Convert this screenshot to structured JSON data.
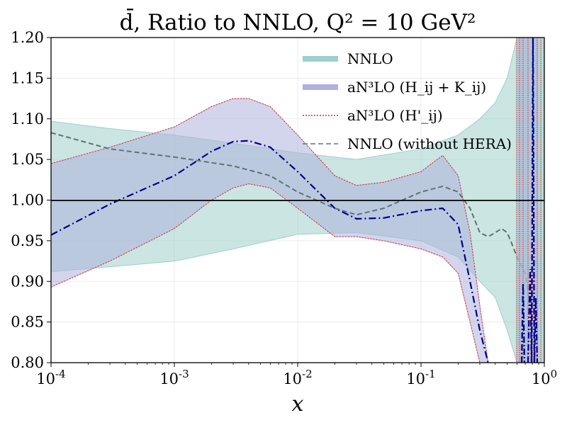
{
  "chart_data": {
    "type": "line",
    "title": "d̄, Ratio to NNLO, Q² = 10 GeV²",
    "xlabel": "x",
    "ylabel": "",
    "xscale": "log",
    "xlim": [
      0.0001,
      1
    ],
    "ylim": [
      0.8,
      1.2
    ],
    "grid": true,
    "legend_position": "top-right",
    "x_tick_labels": [
      "10^-4",
      "10^-3",
      "10^-2",
      "10^-1",
      "10^0"
    ],
    "y_tick_labels": [
      "0.80",
      "0.85",
      "0.90",
      "0.95",
      "1.00",
      "1.05",
      "1.10",
      "1.15",
      "1.20"
    ],
    "reference_line": 1.0,
    "legend": [
      {
        "label": "NNLO",
        "style": "band",
        "color": "#9ecfcb"
      },
      {
        "label": "aN³LO (H_ij + K_ij)",
        "style": "band",
        "color": "#aeb2dc"
      },
      {
        "label": "aN³LO (H'_ij)",
        "style": "dotted",
        "color": "#e8241b"
      },
      {
        "label": "NNLO (without HERA)",
        "style": "dashed",
        "color": "#5e7373"
      }
    ],
    "series": [
      {
        "name": "NNLO band",
        "kind": "band",
        "color": "#9ecfcb",
        "x": [
          0.0001,
          0.0003,
          0.001,
          0.003,
          0.01,
          0.03,
          0.1,
          0.2,
          0.3,
          0.4,
          0.5,
          0.6,
          0.7,
          0.8,
          0.9,
          1.0
        ],
        "upper": [
          1.097,
          1.088,
          1.08,
          1.07,
          1.058,
          1.05,
          1.063,
          1.08,
          1.1,
          1.12,
          1.15,
          1.2,
          1.2,
          1.2,
          1.2,
          1.2
        ],
        "lower": [
          0.912,
          0.918,
          0.925,
          0.94,
          0.958,
          0.96,
          0.95,
          0.93,
          0.9,
          0.88,
          0.84,
          0.8,
          0.8,
          0.8,
          0.8,
          0.8
        ]
      },
      {
        "name": "aN³LO (H_ij + K_ij) band",
        "kind": "band",
        "color": "#aeb2dc",
        "x": [
          0.0001,
          0.0003,
          0.001,
          0.002,
          0.003,
          0.004,
          0.006,
          0.01,
          0.02,
          0.03,
          0.05,
          0.1,
          0.15,
          0.2,
          0.25,
          0.3,
          0.35
        ],
        "upper": [
          1.045,
          1.065,
          1.09,
          1.115,
          1.125,
          1.125,
          1.115,
          1.08,
          1.03,
          1.018,
          1.022,
          1.035,
          1.055,
          1.03,
          0.96,
          0.87,
          0.8
        ],
        "lower": [
          0.893,
          0.925,
          0.965,
          1.0,
          1.015,
          1.02,
          1.015,
          0.99,
          0.955,
          0.955,
          0.95,
          0.94,
          0.93,
          0.91,
          0.85,
          0.8,
          0.78
        ]
      },
      {
        "name": "aN³LO (H_ij + K_ij) central",
        "kind": "line",
        "style": "dashdot",
        "color": "#00008b",
        "x": [
          0.0001,
          0.0003,
          0.001,
          0.002,
          0.003,
          0.004,
          0.006,
          0.01,
          0.02,
          0.03,
          0.05,
          0.1,
          0.15,
          0.2,
          0.25,
          0.3,
          0.35
        ],
        "y": [
          0.957,
          0.995,
          1.03,
          1.06,
          1.072,
          1.073,
          1.065,
          1.035,
          0.99,
          0.977,
          0.978,
          0.987,
          0.99,
          0.97,
          0.9,
          0.84,
          0.8
        ]
      },
      {
        "name": "NNLO (without HERA)",
        "kind": "line",
        "style": "dashed",
        "color": "#5e7373",
        "x": [
          0.0001,
          0.0003,
          0.001,
          0.003,
          0.006,
          0.01,
          0.02,
          0.03,
          0.05,
          0.1,
          0.15,
          0.2,
          0.25,
          0.3,
          0.35,
          0.4,
          0.45,
          0.5,
          0.55,
          0.6,
          0.65,
          0.7,
          0.75,
          0.8
        ],
        "y": [
          1.083,
          1.063,
          1.053,
          1.042,
          1.03,
          1.01,
          0.99,
          0.982,
          0.99,
          1.01,
          1.017,
          1.01,
          0.99,
          0.96,
          0.955,
          0.96,
          0.965,
          0.96,
          0.945,
          0.93,
          0.92,
          0.91,
          0.88,
          0.85
        ]
      }
    ]
  }
}
